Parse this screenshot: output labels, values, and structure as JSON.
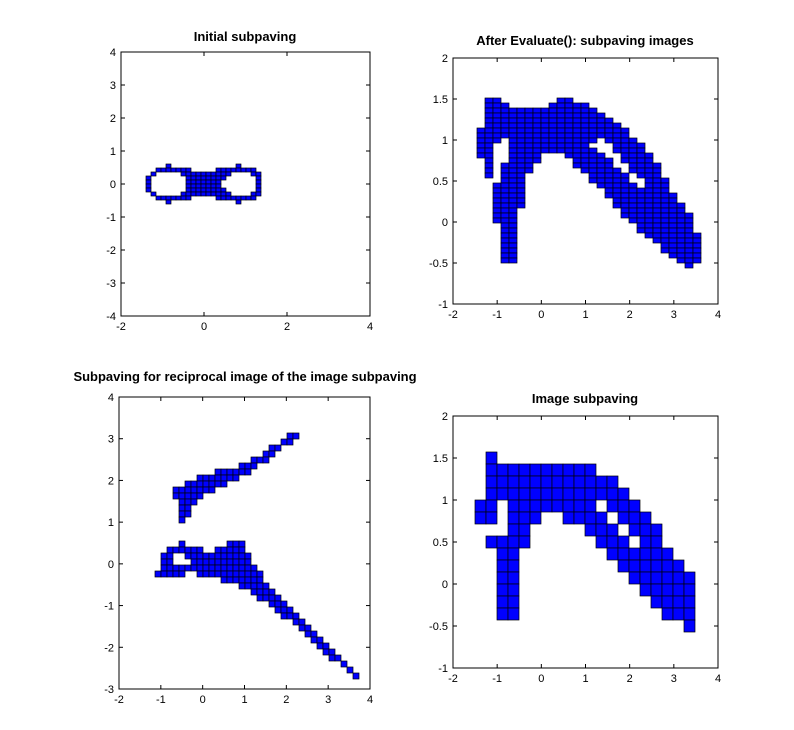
{
  "colors": {
    "fill": "#0000ff",
    "edge": "#000000",
    "background": "#ffffff"
  },
  "chart_data": [
    {
      "type": "region",
      "title": "Initial subpaving",
      "xlim": [
        -2,
        4
      ],
      "ylim": [
        -4,
        4
      ],
      "xticks": [
        "-2",
        "0",
        "2",
        "4"
      ],
      "yticks": [
        "-4",
        "-3",
        "-2",
        "-1",
        "0",
        "1",
        "2",
        "3",
        "4"
      ],
      "grid": false,
      "shapes": [
        {
          "kind": "lemniscate",
          "a": 0.98,
          "outer": 1.25,
          "inner": 1.0,
          "ymax": 0.7
        }
      ]
    },
    {
      "type": "region",
      "title": "After Evaluate(): subpaving images",
      "xlim": [
        -2,
        4
      ],
      "ylim": [
        -1,
        2
      ],
      "xticks": [
        "-2",
        "-1",
        "0",
        "1",
        "2",
        "3",
        "4"
      ],
      "yticks": [
        "-1",
        "-0.5",
        "0",
        "0.5",
        "1",
        "1.5",
        "2"
      ],
      "grid": false,
      "shapes": [
        {
          "kind": "polygon",
          "points": [
            [
              -1.3,
              1.55
            ],
            [
              -1.0,
              1.5
            ],
            [
              -0.5,
              1.38
            ],
            [
              0.0,
              1.4
            ],
            [
              0.5,
              1.5
            ],
            [
              1.0,
              1.45
            ],
            [
              1.5,
              1.3
            ],
            [
              2.0,
              1.1
            ],
            [
              2.5,
              0.8
            ],
            [
              3.0,
              0.35
            ],
            [
              3.45,
              0.0
            ],
            [
              3.6,
              -0.3
            ],
            [
              3.5,
              -0.55
            ],
            [
              3.3,
              -0.55
            ],
            [
              2.8,
              -0.35
            ],
            [
              2.0,
              0.0
            ],
            [
              1.5,
              0.3
            ],
            [
              1.0,
              0.6
            ],
            [
              0.5,
              0.82
            ],
            [
              0.0,
              0.82
            ],
            [
              -0.3,
              0.55
            ],
            [
              -0.5,
              0.1
            ],
            [
              -0.6,
              -0.45
            ],
            [
              -0.7,
              -0.55
            ],
            [
              -0.85,
              -0.5
            ],
            [
              -0.95,
              -0.2
            ],
            [
              -1.15,
              0.5
            ],
            [
              -1.4,
              0.8
            ],
            [
              -1.35,
              1.3
            ]
          ]
        },
        {
          "kind": "polygon",
          "hole": true,
          "points": [
            [
              -1.05,
              0.95
            ],
            [
              -0.75,
              1.05
            ],
            [
              -0.85,
              0.6
            ],
            [
              -1.0,
              0.45
            ],
            [
              -1.15,
              0.65
            ]
          ]
        },
        {
          "kind": "polygon",
          "hole": true,
          "points": [
            [
              1.05,
              0.98
            ],
            [
              1.45,
              1.02
            ],
            [
              2.1,
              0.6
            ],
            [
              2.45,
              0.42
            ],
            [
              2.15,
              0.45
            ],
            [
              1.6,
              0.72
            ]
          ]
        }
      ]
    },
    {
      "type": "region",
      "title": "Subpaving for reciprocal image of the image subpaving",
      "xlim": [
        -2,
        4
      ],
      "ylim": [
        -3,
        4
      ],
      "xticks": [
        "-2",
        "-1",
        "0",
        "1",
        "2",
        "3",
        "4"
      ],
      "yticks": [
        "-3",
        "-2",
        "-1",
        "0",
        "1",
        "2",
        "3",
        "4"
      ],
      "grid": false,
      "shapes": [
        {
          "kind": "polygon",
          "points": [
            [
              -0.75,
              1.75
            ],
            [
              0.0,
              2.1
            ],
            [
              1.0,
              2.4
            ],
            [
              2.3,
              3.2
            ],
            [
              2.2,
              3.0
            ],
            [
              1.2,
              2.25
            ],
            [
              0.3,
              1.75
            ],
            [
              -0.15,
              1.5
            ],
            [
              -0.5,
              0.95
            ],
            [
              -0.55,
              1.35
            ]
          ]
        },
        {
          "kind": "polygon",
          "points": [
            [
              -0.5,
              0.95
            ],
            [
              -0.65,
              0.35
            ],
            [
              -0.9,
              0.35
            ],
            [
              -1.05,
              0.0
            ],
            [
              -1.1,
              -0.35
            ],
            [
              -0.85,
              -0.35
            ],
            [
              -0.3,
              -0.2
            ],
            [
              0.2,
              -0.35
            ],
            [
              0.8,
              -0.45
            ],
            [
              1.5,
              -0.95
            ],
            [
              2.5,
              -1.7
            ],
            [
              3.0,
              -2.2
            ],
            [
              3.7,
              -2.75
            ],
            [
              3.65,
              -2.55
            ],
            [
              3.0,
              -2.0
            ],
            [
              2.5,
              -1.45
            ],
            [
              1.8,
              -0.7
            ],
            [
              1.2,
              -0.05
            ],
            [
              1.0,
              0.5
            ],
            [
              0.8,
              0.55
            ],
            [
              0.3,
              0.3
            ],
            [
              -0.2,
              0.35
            ],
            [
              -0.6,
              0.55
            ]
          ]
        },
        {
          "kind": "polygon",
          "hole": true,
          "points": [
            [
              -0.7,
              0.2
            ],
            [
              -0.45,
              0.3
            ],
            [
              -0.3,
              0.05
            ],
            [
              -0.7,
              -0.1
            ]
          ]
        }
      ]
    },
    {
      "type": "region",
      "title": "Image subpaving",
      "xlim": [
        -2,
        4
      ],
      "ylim": [
        -1,
        2
      ],
      "xticks": [
        "-2",
        "-1",
        "0",
        "1",
        "2",
        "3",
        "4"
      ],
      "yticks": [
        "-1",
        "-0.5",
        "0",
        "0.5",
        "1",
        "1.5",
        "2"
      ],
      "grid": false,
      "shapes": [
        {
          "kind": "polygon",
          "points": [
            [
              -1.3,
              1.55
            ],
            [
              -1.0,
              1.5
            ],
            [
              -0.5,
              1.38
            ],
            [
              0.0,
              1.4
            ],
            [
              0.5,
              1.5
            ],
            [
              1.0,
              1.45
            ],
            [
              1.5,
              1.3
            ],
            [
              2.0,
              1.1
            ],
            [
              2.5,
              0.8
            ],
            [
              3.0,
              0.35
            ],
            [
              3.45,
              0.0
            ],
            [
              3.6,
              -0.3
            ],
            [
              3.5,
              -0.55
            ],
            [
              3.3,
              -0.55
            ],
            [
              2.8,
              -0.35
            ],
            [
              2.0,
              0.0
            ],
            [
              1.5,
              0.3
            ],
            [
              1.0,
              0.6
            ],
            [
              0.5,
              0.82
            ],
            [
              0.0,
              0.82
            ],
            [
              -0.3,
              0.55
            ],
            [
              -0.5,
              0.1
            ],
            [
              -0.6,
              -0.45
            ],
            [
              -0.7,
              -0.55
            ],
            [
              -0.85,
              -0.5
            ],
            [
              -0.95,
              -0.2
            ],
            [
              -1.15,
              0.5
            ],
            [
              -1.4,
              0.8
            ],
            [
              -1.35,
              1.3
            ]
          ]
        },
        {
          "kind": "polygon",
          "hole": true,
          "points": [
            [
              -1.05,
              0.95
            ],
            [
              -0.75,
              1.05
            ],
            [
              -0.85,
              0.6
            ],
            [
              -1.0,
              0.45
            ],
            [
              -1.15,
              0.65
            ]
          ]
        },
        {
          "kind": "polygon",
          "hole": true,
          "points": [
            [
              1.05,
              0.98
            ],
            [
              1.45,
              1.02
            ],
            [
              2.1,
              0.6
            ],
            [
              2.45,
              0.42
            ],
            [
              2.15,
              0.45
            ],
            [
              1.6,
              0.72
            ]
          ]
        }
      ]
    }
  ]
}
